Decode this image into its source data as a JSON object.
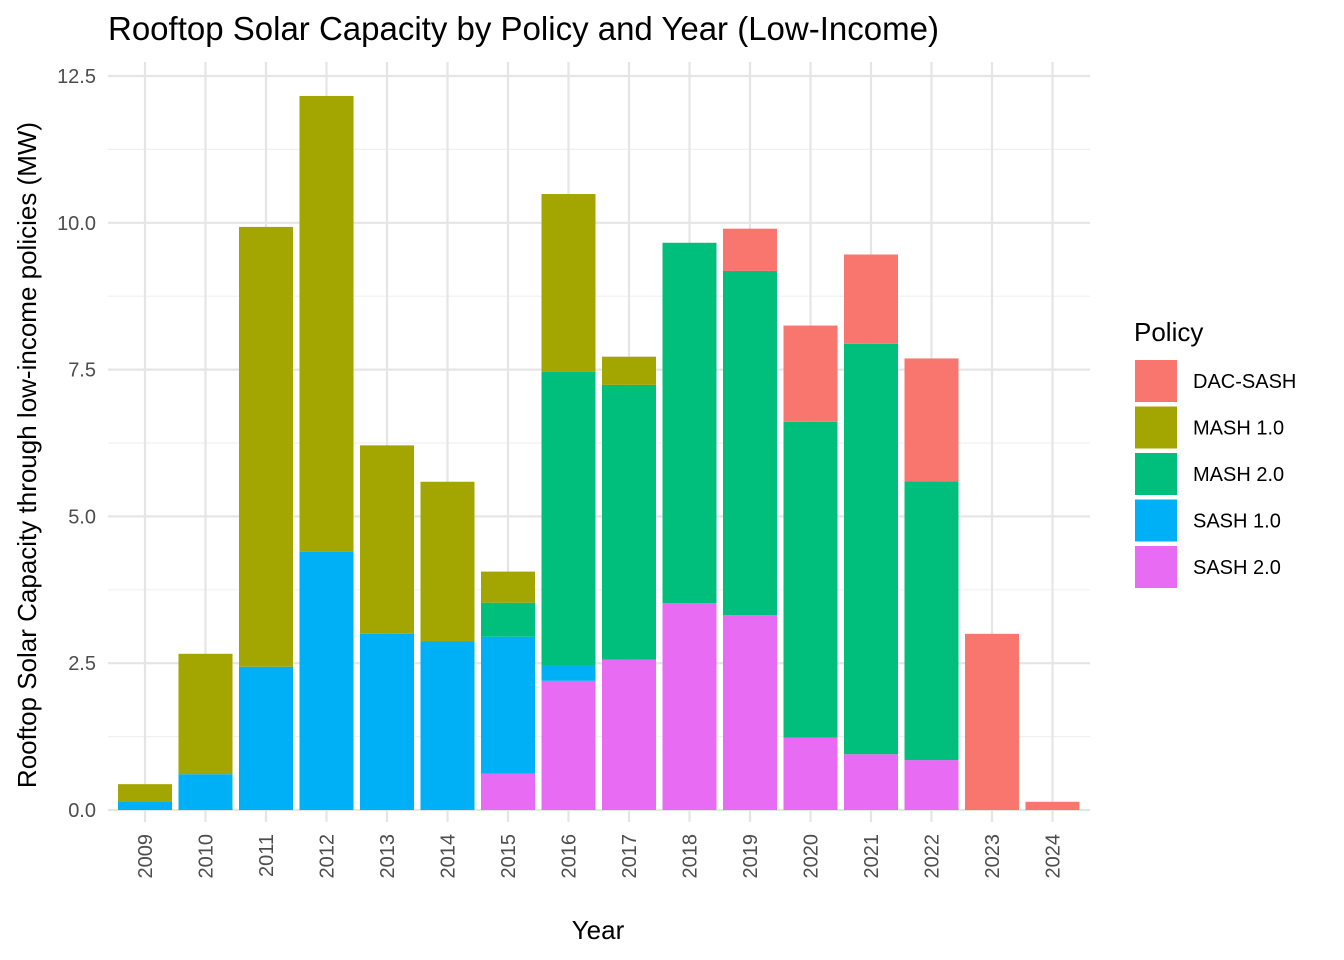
{
  "chart_data": {
    "type": "bar",
    "stacked": true,
    "title": "Rooftop Solar Capacity by Policy and Year (Low-Income)",
    "xlabel": "Year",
    "ylabel": "Rooftop Solar Capacity through low-income policies (MW)",
    "ylim": [
      0,
      12.5
    ],
    "yticks": [
      "0.0",
      "2.5",
      "5.0",
      "7.5",
      "10.0",
      "12.5"
    ],
    "grid": true,
    "legend_title": "Policy",
    "legend_position": "right",
    "categories": [
      "2009",
      "2010",
      "2011",
      "2012",
      "2013",
      "2014",
      "2015",
      "2016",
      "2017",
      "2018",
      "2019",
      "2020",
      "2021",
      "2022",
      "2023",
      "2024"
    ],
    "series": [
      {
        "name": "SASH 2.0",
        "color": "#E76BF3",
        "values": [
          0,
          0,
          0,
          0,
          0,
          0,
          0.62,
          2.2,
          2.56,
          3.52,
          3.32,
          1.23,
          0.95,
          0.85,
          0,
          0
        ]
      },
      {
        "name": "SASH 1.0",
        "color": "#00B0F6",
        "values": [
          0.15,
          0.61,
          2.44,
          4.4,
          3.0,
          2.87,
          2.33,
          0.26,
          0,
          0,
          0,
          0,
          0,
          0,
          0,
          0
        ]
      },
      {
        "name": "MASH 2.0",
        "color": "#00BF7D",
        "values": [
          0,
          0,
          0,
          0,
          0,
          0,
          0.58,
          5.0,
          4.68,
          6.14,
          5.86,
          5.38,
          6.99,
          4.75,
          0,
          0
        ]
      },
      {
        "name": "MASH 1.0",
        "color": "#A3A500",
        "values": [
          0.29,
          2.05,
          7.49,
          7.76,
          3.21,
          2.72,
          0.53,
          3.03,
          0.48,
          0,
          0,
          0,
          0,
          0,
          0,
          0
        ]
      },
      {
        "name": "DAC-SASH",
        "color": "#F8766D",
        "values": [
          0,
          0,
          0,
          0,
          0,
          0,
          0,
          0,
          0,
          0,
          0.72,
          1.64,
          1.52,
          2.09,
          3.0,
          0.14
        ]
      }
    ],
    "legend_order": [
      "DAC-SASH",
      "MASH 1.0",
      "MASH 2.0",
      "SASH 1.0",
      "SASH 2.0"
    ]
  }
}
